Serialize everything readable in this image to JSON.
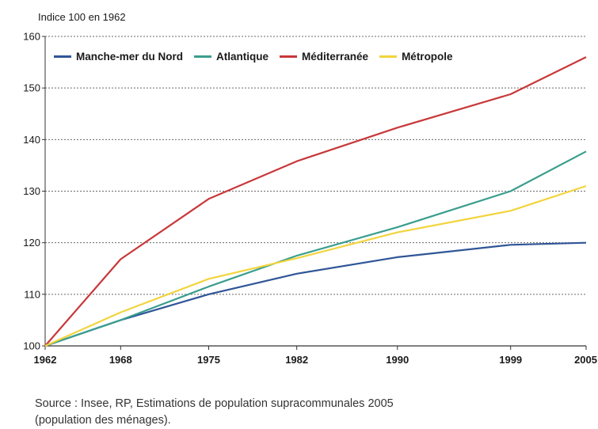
{
  "chart_data": {
    "type": "line",
    "ylabel": "Indice 100 en 1962",
    "x": [
      1962,
      1968,
      1975,
      1982,
      1990,
      1999,
      2005
    ],
    "xticks": [
      "1962",
      "1968",
      "1975",
      "1982",
      "1990",
      "1999",
      "2005"
    ],
    "yticks": [
      100,
      110,
      120,
      130,
      140,
      150,
      160
    ],
    "ylim": [
      100,
      160
    ],
    "grid": true,
    "legend_position": "top-left",
    "series": [
      {
        "name": "Manche-mer du Nord",
        "color": "#2f5597",
        "values": [
          100,
          105,
          110,
          114,
          117.2,
          119.6,
          120
        ]
      },
      {
        "name": "Atlantique",
        "color": "#3a9e8e",
        "values": [
          100,
          105,
          111.5,
          117.5,
          123,
          130,
          137.7
        ]
      },
      {
        "name": "Méditerranée",
        "color": "#c8383a",
        "values": [
          100,
          116.8,
          128.5,
          135.8,
          142.3,
          148.8,
          156
        ]
      },
      {
        "name": "Métropole",
        "color": "#f2d43c",
        "values": [
          100,
          106.5,
          113,
          117,
          122,
          126.2,
          131
        ]
      }
    ]
  },
  "source_line1": "Source : Insee, RP, Estimations de population supracommunales 2005",
  "source_line2": "(population des ménages)."
}
